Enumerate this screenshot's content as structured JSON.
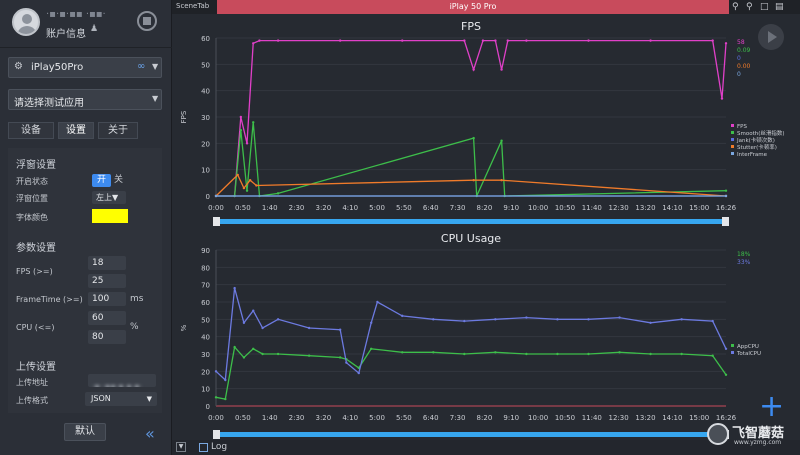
{
  "sidebar": {
    "username": "·▪·▪·▪▪ ·▪▪·",
    "account_label": "账户信息",
    "device_name": "iPlay50Pro",
    "app_select_placeholder": "请选择测试应用",
    "tabs": [
      "设备",
      "设置",
      "关于"
    ],
    "active_tab": "设置",
    "float_section": {
      "title": "浮窗设置",
      "status_label": "开启状态",
      "status_on": "开",
      "status_off": "关",
      "position_label": "浮窗位置",
      "position_value": "左上▼",
      "font_color_label": "字体颜色",
      "font_color": "#ffff00"
    },
    "params_section": {
      "title": "参数设置",
      "fps_label": "FPS (>=)",
      "fps_values": [
        "18",
        "25"
      ],
      "frametime_label": "FrameTime (>=)",
      "frametime_value": "100",
      "frametime_unit": "ms",
      "cpu_label": "CPU (<=)",
      "cpu_values": [
        "60",
        "80"
      ],
      "cpu_unit": "%"
    },
    "upload_section": {
      "title": "上传设置",
      "url_label": "上传地址",
      "url_value": "·▪··▪▪·▪ ▪·▪·",
      "format_label": "上传格式",
      "format_value": "JSON"
    },
    "default_button": "默认"
  },
  "topbar": {
    "scene_tab": "SceneTab",
    "device_title": "iPlay 50 Pro"
  },
  "bottom": {
    "log_label": "Log"
  },
  "watermark": {
    "text": "飞智蘑菇",
    "url": "www.yzmg.com"
  },
  "colors": {
    "fps": "#e040c8",
    "smooth": "#3dbe4a",
    "jank": "#5b6ee0",
    "stutter": "#f07b2a",
    "interframe": "#7aa7e0",
    "appcpu": "#3dbe4a",
    "totalcpu": "#6c7ae0",
    "scrollbar": "#37a7f0",
    "title_bar": "#c84b5c"
  },
  "chart_data": [
    {
      "type": "line",
      "title": "FPS",
      "ylabel": "FPS",
      "ylim": [
        0,
        60
      ],
      "yticks": [
        "0",
        "10",
        "20",
        "30",
        "40",
        "50",
        "60"
      ],
      "xticks": [
        "0:00",
        "0:50",
        "1:40",
        "2:30",
        "3:20",
        "4:10",
        "5:00",
        "5:50",
        "6:40",
        "7:30",
        "8:20",
        "9:10",
        "10:00",
        "10:50",
        "11:40",
        "12:30",
        "13:20",
        "14:10",
        "15:00",
        "16:26"
      ],
      "series": [
        {
          "name": "FPS",
          "current": "58",
          "x": [
            0,
            0.6,
            0.8,
            1.0,
            1.2,
            1.4,
            2,
            4,
            6,
            8,
            8.3,
            8.6,
            9,
            9.2,
            9.4,
            10,
            12,
            14,
            16,
            16.3,
            16.43
          ],
          "values": [
            0,
            0,
            30,
            20,
            58,
            59,
            59,
            59,
            59,
            59,
            48,
            59,
            59,
            48,
            59,
            59,
            59,
            59,
            59,
            37,
            58
          ]
        },
        {
          "name": "Smooth(丝滑指数)",
          "current": "0.09",
          "x": [
            0,
            0.6,
            0.8,
            1.0,
            1.2,
            1.4,
            2,
            8.3,
            8.4,
            9.2,
            9.3,
            16.43
          ],
          "values": [
            0,
            0,
            25,
            2,
            28,
            0,
            1,
            22,
            0,
            21,
            0,
            2
          ]
        },
        {
          "name": "Jank(卡顿次数)",
          "current": "0",
          "x": [
            0,
            16.43
          ],
          "values": [
            0,
            0
          ]
        },
        {
          "name": "Stutter(卡顿率)",
          "current": "0.00",
          "x": [
            0,
            0.7,
            0.9,
            1.1,
            1.3,
            8.3,
            9.2,
            16.43
          ],
          "values": [
            0,
            8,
            3,
            6,
            4,
            6,
            6,
            0
          ]
        },
        {
          "name": "InterFrame",
          "current": "0",
          "x": [
            0,
            16.43
          ],
          "values": [
            0,
            0
          ]
        }
      ],
      "legend_placement": "right"
    },
    {
      "type": "line",
      "title": "CPU Usage",
      "ylabel": "%",
      "ylim": [
        0,
        90
      ],
      "yticks": [
        "0",
        "10",
        "20",
        "30",
        "40",
        "50",
        "60",
        "70",
        "80",
        "90"
      ],
      "xticks": [
        "0:00",
        "0:50",
        "1:40",
        "2:30",
        "3:20",
        "4:10",
        "5:00",
        "5:50",
        "6:40",
        "7:30",
        "8:20",
        "9:10",
        "10:00",
        "10:50",
        "11:40",
        "12:30",
        "13:20",
        "14:10",
        "15:00",
        "16:26"
      ],
      "series": [
        {
          "name": "AppCPU",
          "current": "18%",
          "x": [
            0,
            0.3,
            0.6,
            0.9,
            1.2,
            1.5,
            2,
            3,
            4,
            4.2,
            4.6,
            5,
            6,
            7,
            8,
            9,
            10,
            11,
            12,
            13,
            14,
            15,
            16,
            16.43
          ],
          "values": [
            5,
            4,
            34,
            28,
            33,
            30,
            30,
            29,
            28,
            27,
            22,
            33,
            31,
            31,
            30,
            31,
            30,
            30,
            30,
            31,
            30,
            30,
            29,
            18
          ]
        },
        {
          "name": "TotalCPU",
          "current": "33%",
          "x": [
            0,
            0.3,
            0.6,
            0.9,
            1.2,
            1.5,
            2,
            3,
            4,
            4.2,
            4.6,
            5,
            5.2,
            6,
            7,
            8,
            9,
            10,
            11,
            12,
            13,
            14,
            15,
            16,
            16.43
          ],
          "values": [
            20,
            15,
            68,
            48,
            55,
            45,
            50,
            45,
            44,
            25,
            19,
            48,
            60,
            52,
            50,
            49,
            50,
            51,
            50,
            50,
            51,
            48,
            50,
            49,
            33
          ]
        }
      ],
      "legend_placement": "right"
    }
  ]
}
